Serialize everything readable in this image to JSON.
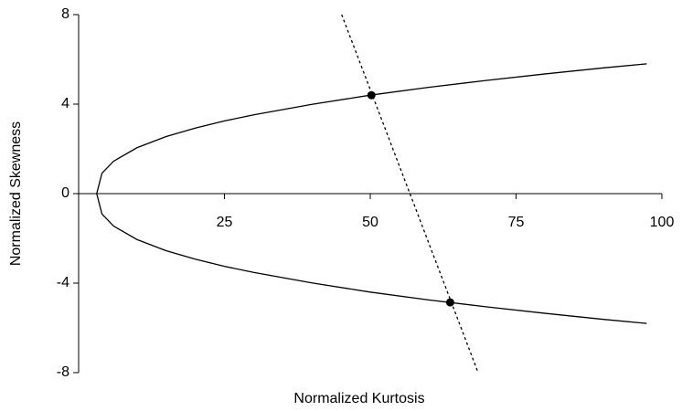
{
  "chart_data": {
    "type": "line",
    "x_label": "Normalized Kurtosis",
    "y_label": "Normalized Skewness",
    "xlim": [
      0,
      100
    ],
    "ylim": [
      -8,
      8
    ],
    "xticks": [
      25,
      50,
      75,
      100
    ],
    "yticks": [
      8,
      4,
      0,
      -4,
      -8
    ],
    "series": [
      {
        "name": "upper",
        "color": "#000000",
        "style": "solid",
        "x": [
          3.1,
          4,
          6,
          10,
          15,
          20,
          25,
          30,
          40,
          50,
          60,
          70,
          80,
          90,
          97.4
        ],
        "values": [
          0,
          0.91,
          1.45,
          2.05,
          2.55,
          2.93,
          3.25,
          3.52,
          3.99,
          4.4,
          4.75,
          5.06,
          5.35,
          5.62,
          5.8
        ]
      },
      {
        "name": "lower",
        "color": "#000000",
        "style": "solid",
        "x": [
          3.1,
          4,
          6,
          10,
          15,
          20,
          25,
          30,
          40,
          50,
          60,
          70,
          80,
          90,
          97.4
        ],
        "values": [
          0,
          -0.91,
          -1.45,
          -2.05,
          -2.55,
          -2.93,
          -3.25,
          -3.52,
          -3.99,
          -4.4,
          -4.75,
          -5.06,
          -5.35,
          -5.62,
          -5.8
        ]
      },
      {
        "name": "line",
        "color": "#000000",
        "style": "dotted",
        "x": [
          45.1,
          68.5
        ],
        "values": [
          8,
          -8
        ]
      },
      {
        "name": "points",
        "color": "#000000",
        "style": "points",
        "x": [
          50.2,
          63.7
        ],
        "values": [
          4.4,
          -4.86
        ]
      }
    ]
  }
}
